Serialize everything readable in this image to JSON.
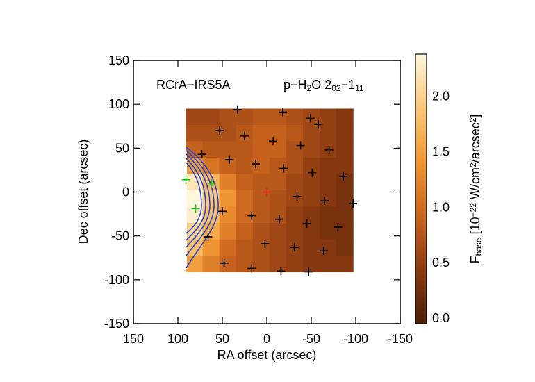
{
  "chart_data": {
    "type": "heatmap",
    "annotation_left": "RCrA−IRS5A",
    "annotation_right": [
      {
        "t": "p−H"
      },
      {
        "t": "2",
        "sub": true
      },
      {
        "t": "O 2"
      },
      {
        "t": "02",
        "sub": true
      },
      {
        "t": "−1"
      },
      {
        "t": "11",
        "sub": true
      }
    ],
    "xlabel": "RA offset (arcsec)",
    "ylabel": "Dec offset (arcsec)",
    "colorbar_label": [
      {
        "t": "F"
      },
      {
        "t": "base",
        "sub": true
      },
      {
        "t": " [10"
      },
      {
        "t": "−22",
        "sup": true
      },
      {
        "t": " W/cm"
      },
      {
        "t": "2",
        "sup": true
      },
      {
        "t": "/arcsec"
      },
      {
        "t": "2",
        "sup": true
      },
      {
        "t": "]"
      }
    ],
    "xlim": [
      150,
      -150
    ],
    "ylim": [
      -150,
      150
    ],
    "xticks": [
      150,
      100,
      50,
      0,
      -50,
      -100,
      -150
    ],
    "yticks": [
      -150,
      -100,
      -50,
      0,
      50,
      100,
      150
    ],
    "x": [
      81.6,
      62.8,
      44,
      25.2,
      6.4,
      -12.4,
      -31.2,
      -50,
      -68.8,
      -87.6
    ],
    "y": [
      85.7,
      67.1,
      48.5,
      29.9,
      11.3,
      -7.3,
      -25.9,
      -44.5,
      -63.1,
      -81.7
    ],
    "values": [
      [
        0.6,
        0.6,
        0.7,
        0.7,
        0.8,
        0.8,
        0.7,
        0.6,
        0.5,
        0.4
      ],
      [
        0.7,
        0.7,
        0.7,
        0.8,
        0.9,
        0.9,
        0.8,
        0.6,
        0.5,
        0.4
      ],
      [
        0.9,
        0.8,
        0.8,
        0.8,
        0.9,
        0.9,
        0.7,
        0.6,
        0.5,
        0.4
      ],
      [
        1.5,
        1.1,
        0.9,
        0.8,
        0.9,
        0.8,
        0.7,
        0.5,
        0.4,
        0.4
      ],
      [
        2.2,
        1.7,
        1.2,
        0.9,
        0.8,
        0.8,
        0.6,
        0.5,
        0.4,
        0.3
      ],
      [
        2.4,
        1.9,
        1.4,
        1.0,
        0.8,
        0.7,
        0.6,
        0.5,
        0.4,
        0.3
      ],
      [
        2.3,
        1.8,
        1.3,
        1.0,
        0.8,
        0.7,
        0.5,
        0.4,
        0.3,
        0.3
      ],
      [
        2.0,
        1.6,
        1.2,
        0.9,
        0.7,
        0.6,
        0.5,
        0.4,
        0.3,
        0.3
      ],
      [
        1.8,
        1.4,
        1.0,
        0.8,
        0.7,
        0.6,
        0.5,
        0.4,
        0.4,
        0.3
      ],
      [
        1.5,
        1.2,
        0.9,
        0.8,
        0.7,
        0.6,
        0.5,
        0.4,
        0.4,
        0.4
      ]
    ],
    "colormap": [
      "#4a1f08",
      "#8a3a10",
      "#c8641e",
      "#f09632",
      "#fac878",
      "#fff6dc"
    ],
    "clim": [
      -0.05,
      2.38
    ],
    "cticks": [
      {
        "value": 0,
        "label": "0.0"
      },
      {
        "value": 0.5,
        "label": "0.5"
      },
      {
        "value": 1,
        "label": "1.0"
      },
      {
        "value": 1.5,
        "label": "1.5"
      },
      {
        "value": 2,
        "label": "2.0"
      }
    ],
    "marker_groups": [
      {
        "color": "#000000",
        "points": [
          [
            33,
            94
          ],
          [
            -18,
            91
          ],
          [
            -49,
            84
          ],
          [
            53,
            70
          ],
          [
            25,
            64
          ],
          [
            -7,
            58
          ],
          [
            -38,
            53
          ],
          [
            -58,
            77
          ],
          [
            -70,
            48
          ],
          [
            73,
            43
          ],
          [
            42,
            37
          ],
          [
            12.5,
            32
          ],
          [
            -19,
            27
          ],
          [
            -51,
            22
          ],
          [
            -86,
            18
          ],
          [
            -34,
            -5
          ],
          [
            -65,
            -10
          ],
          [
            -97,
            -13
          ],
          [
            50,
            -22
          ],
          [
            17,
            -27
          ],
          [
            -14,
            -31
          ],
          [
            -45,
            -36
          ],
          [
            -80,
            -40
          ],
          [
            66,
            -51
          ],
          [
            2,
            -59
          ],
          [
            -31,
            -63
          ],
          [
            -64,
            -67
          ],
          [
            48,
            -81
          ],
          [
            17,
            -87
          ],
          [
            -16,
            -90
          ],
          [
            -47,
            -91
          ]
        ]
      },
      {
        "color": "#22cc22",
        "points": [
          [
            91,
            14
          ],
          [
            62,
            10
          ],
          [
            80,
            -19
          ]
        ]
      },
      {
        "color": "#ee2222",
        "points": [
          [
            0,
            0
          ]
        ]
      }
    ]
  }
}
